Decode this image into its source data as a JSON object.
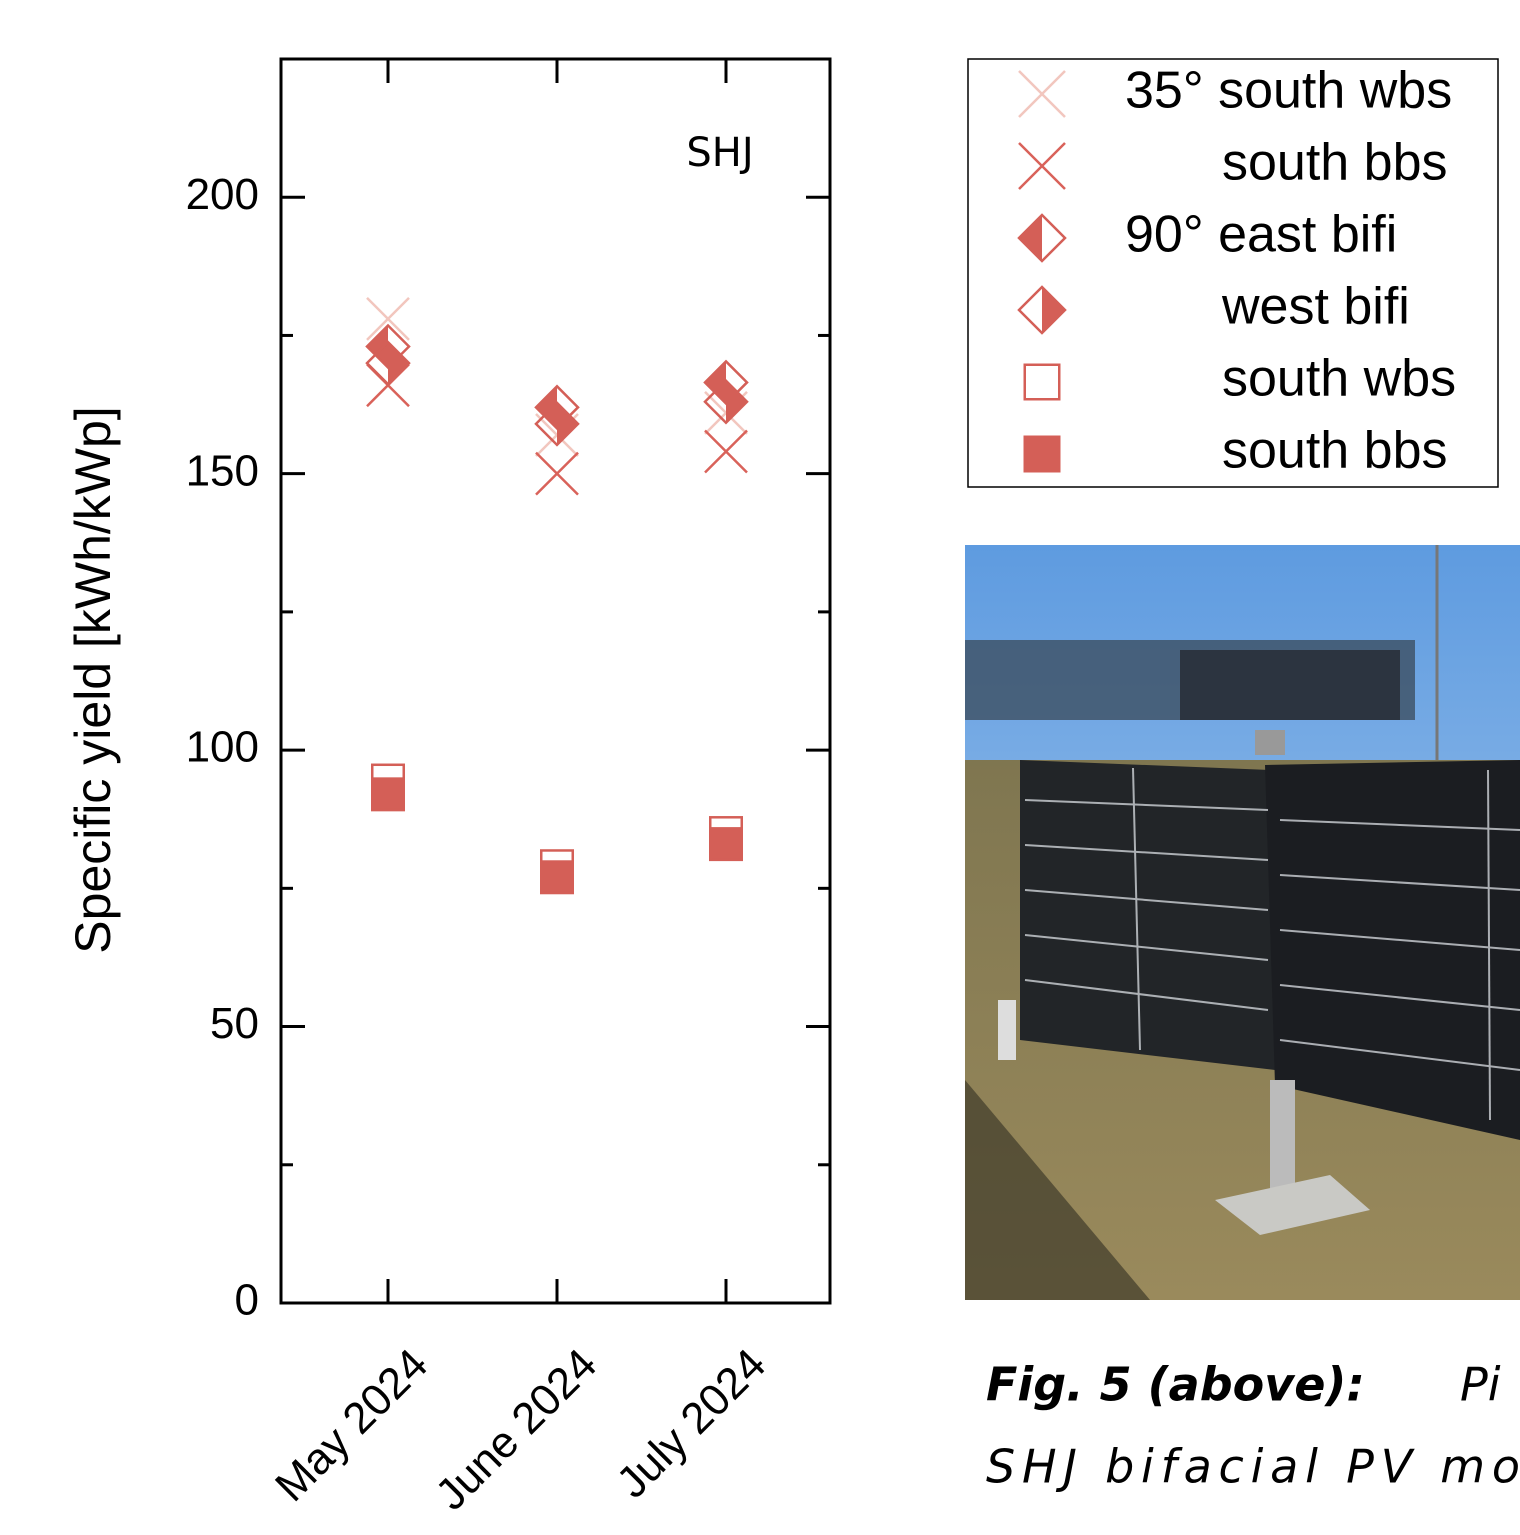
{
  "chart_data": {
    "type": "scatter",
    "annotation": "SHJ",
    "y_label": "Specific yield [kWh/kWp]",
    "categories": [
      "May 2024",
      "June 2024",
      "July 2024"
    ],
    "ylim": [
      0,
      225
    ],
    "yticks": [
      0,
      50,
      100,
      150,
      200
    ],
    "yminorticks": [
      25,
      75,
      125,
      175
    ],
    "series": [
      {
        "name": "35° south wbs",
        "marker": "x",
        "color": "#f2c6be",
        "values": [
          178,
          157,
          161
        ]
      },
      {
        "name": "south bbs",
        "marker": "x",
        "color": "#d9625a",
        "values": [
          166,
          150,
          154
        ]
      },
      {
        "name": "90° east bifi",
        "marker": "diamond-left",
        "color": "#d45f57",
        "values": [
          173,
          162,
          166.5
        ]
      },
      {
        "name": "west bifi",
        "marker": "diamond-right",
        "color": "#d45f57",
        "values": [
          170,
          159,
          163
        ]
      },
      {
        "name": "south wbs",
        "marker": "square-open",
        "color": "#d45f57",
        "values": [
          94.5,
          79,
          85
        ]
      },
      {
        "name": "south bbs",
        "marker": "square-filled",
        "color": "#d45f57",
        "values": [
          92,
          77,
          83
        ]
      }
    ]
  },
  "caption": {
    "label": "Fig. 5 (above):",
    "line1": "Pi",
    "line2": "SHJ bifacial PV mo"
  }
}
